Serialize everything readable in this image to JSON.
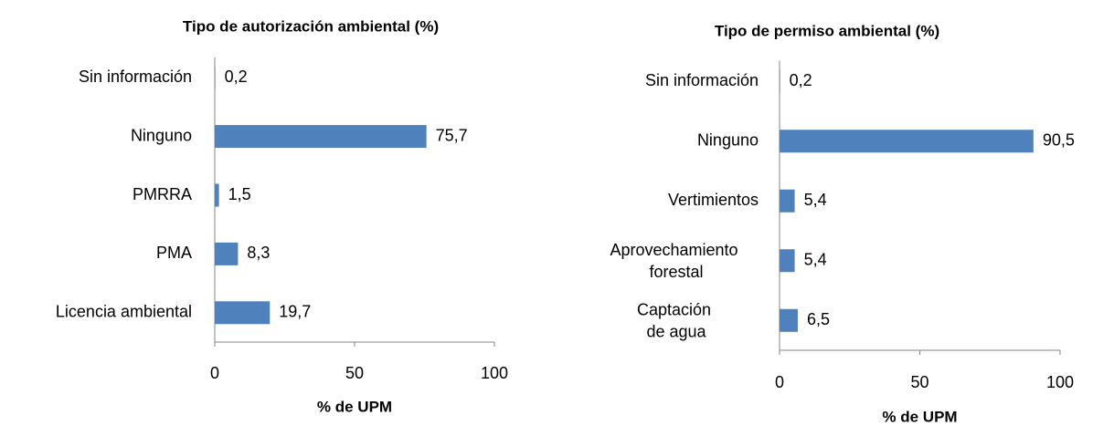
{
  "chart_data": [
    {
      "type": "bar",
      "orientation": "horizontal",
      "title": "Tipo de autorización ambiental (%)",
      "categories": [
        "Sin información",
        "Ninguno",
        "PMRRA",
        "PMA",
        "Licencia ambiental"
      ],
      "values": [
        0.2,
        75.7,
        1.5,
        8.3,
        19.7
      ],
      "value_labels": [
        "0,2",
        "75,7",
        "1,5",
        "8,3",
        "19,7"
      ],
      "color": "#4f81bd",
      "xlim": [
        0,
        100
      ],
      "xticks": [
        0,
        50,
        100
      ],
      "x_label": "% de UPM",
      "grid": false
    },
    {
      "type": "bar",
      "orientation": "horizontal",
      "title": "Tipo de permiso ambiental (%)",
      "categories": [
        "Sin información",
        "Ninguno",
        "Vertimientos",
        "Aprovechamiento forestal",
        "Captación de agua"
      ],
      "values": [
        0.2,
        90.5,
        5.4,
        5.4,
        6.5
      ],
      "value_labels": [
        "0,2",
        "90,5",
        "5,4",
        "5,4",
        "6,5"
      ],
      "color": "#4f81bd",
      "xlim": [
        0,
        100
      ],
      "xticks": [
        0,
        50,
        100
      ],
      "x_label": "% de UPM",
      "grid": false
    }
  ]
}
